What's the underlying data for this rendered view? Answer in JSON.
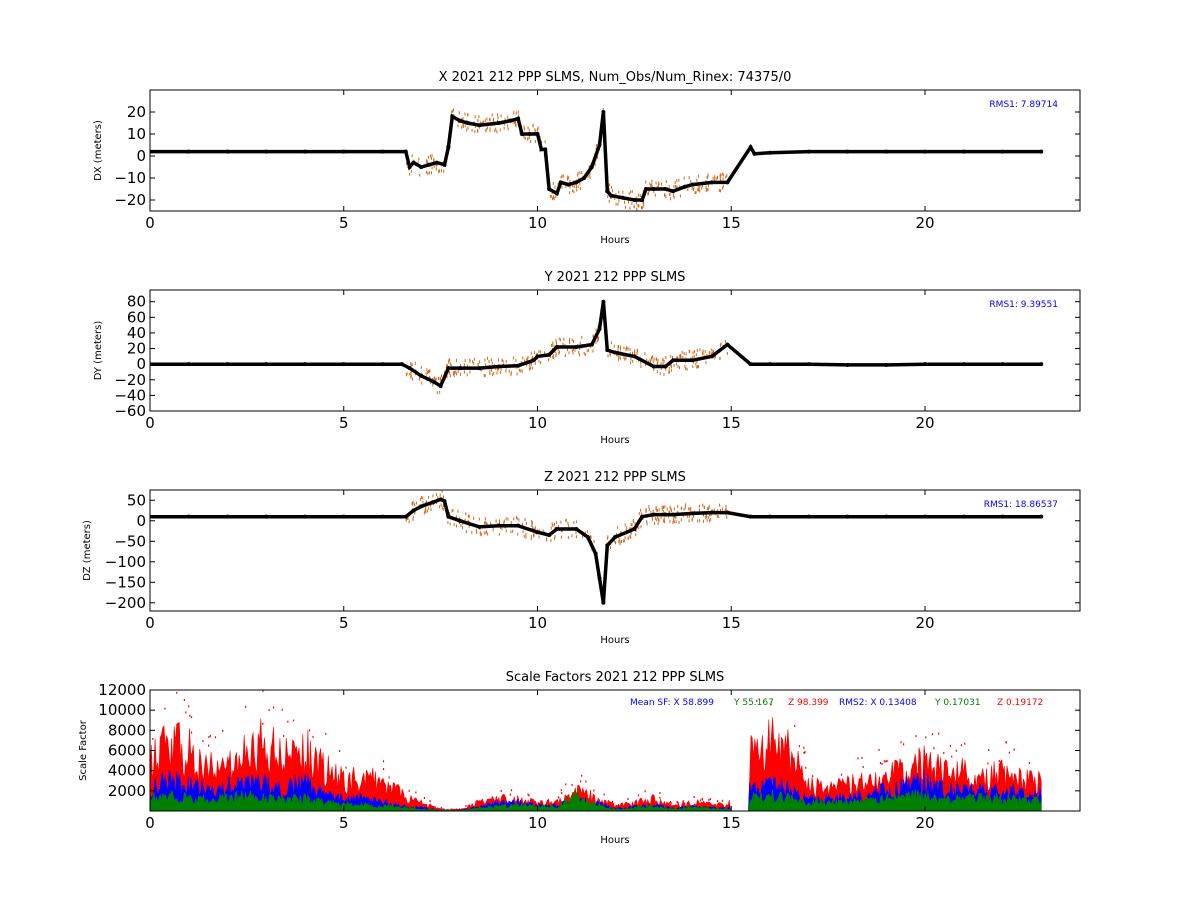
{
  "colors": {
    "background": "#ffffff",
    "axes": "#000000",
    "data": "#000000",
    "data_error": "#d2691e",
    "rms": "#0000ff",
    "sf_x": "#0000ff",
    "sf_y": "#008000",
    "sf_z": "#ff0000"
  },
  "chart_data": [
    {
      "type": "scatter",
      "title": "X 2021 212 PPP  SLMS, Num_Obs/Num_Rinex: 74375/0",
      "xlabel": "Hours",
      "ylabel": "DX (meters)",
      "xlim": [
        0,
        24
      ],
      "ylim": [
        -25,
        30
      ],
      "xticks": [
        0,
        5,
        10,
        15,
        20
      ],
      "yticks": [
        20,
        10,
        0,
        -10,
        -20
      ],
      "rms_label": "RMS1:  7.89714",
      "series": [
        {
          "x": [
            0,
            1,
            2,
            3,
            4,
            5,
            6,
            6.6,
            6.7,
            6.8,
            7.0,
            7.2,
            7.4,
            7.6,
            7.7,
            7.8,
            8.0,
            8.2,
            8.5,
            9.0,
            9.3,
            9.5,
            9.6,
            9.8,
            10.0,
            10.1,
            10.2,
            10.3,
            10.5,
            10.6,
            10.8,
            11.0,
            11.2,
            11.4,
            11.6,
            11.7,
            11.8,
            11.9,
            12.2,
            12.5,
            12.7,
            12.8,
            13.0,
            13.3,
            13.5,
            13.8,
            14.0,
            14.5,
            14.9,
            15.5,
            15.6,
            16,
            17,
            18,
            19,
            20,
            21,
            22,
            23
          ],
          "y": [
            2,
            2,
            2,
            2,
            2,
            2,
            2,
            2,
            -5,
            -3,
            -5,
            -4,
            -3,
            -4,
            4,
            18,
            16,
            15,
            14,
            15,
            16,
            17,
            10,
            10,
            10,
            3,
            3,
            -15,
            -17,
            -12,
            -13,
            -12,
            -10,
            -5,
            5,
            20,
            -16,
            -18,
            -19,
            -20,
            -20,
            -15,
            -15,
            -15,
            -16,
            -14,
            -13,
            -12,
            -12,
            4,
            1,
            1.5,
            2,
            2,
            2,
            2,
            2,
            2,
            2
          ]
        }
      ]
    },
    {
      "type": "scatter",
      "title": "Y 2021 212 PPP  SLMS",
      "xlabel": "Hours",
      "ylabel": "DY (meters)",
      "xlim": [
        0,
        24
      ],
      "ylim": [
        -60,
        95
      ],
      "xticks": [
        0,
        5,
        10,
        15,
        20
      ],
      "yticks": [
        80,
        60,
        40,
        20,
        0,
        -20,
        -40,
        -60
      ],
      "rms_label": "RMS1:  9.39551",
      "series": [
        {
          "x": [
            0,
            1,
            2,
            3,
            4,
            5,
            6,
            6.5,
            6.7,
            7.0,
            7.3,
            7.5,
            7.7,
            8.0,
            8.5,
            9.0,
            9.5,
            9.9,
            10.0,
            10.3,
            10.5,
            11.0,
            11.4,
            11.6,
            11.7,
            11.8,
            12.0,
            12.5,
            13.0,
            13.3,
            13.5,
            14.0,
            14.5,
            14.9,
            15.5,
            16,
            17,
            18,
            19,
            20,
            21,
            22,
            23
          ],
          "y": [
            0,
            0,
            0,
            0,
            0,
            0,
            0,
            0,
            -5,
            -15,
            -22,
            -28,
            -5,
            -5,
            -5,
            -3,
            -2,
            5,
            10,
            12,
            22,
            22,
            25,
            45,
            80,
            18,
            15,
            10,
            -3,
            -3,
            5,
            5,
            10,
            25,
            0,
            0,
            0,
            -1,
            -1,
            0,
            0,
            0,
            0
          ]
        }
      ]
    },
    {
      "type": "scatter",
      "title": "Z 2021 212 PPP  SLMS",
      "xlabel": "Hours",
      "ylabel": "DZ (meters)",
      "xlim": [
        0,
        24
      ],
      "ylim": [
        -220,
        75
      ],
      "xticks": [
        0,
        5,
        10,
        15,
        20
      ],
      "yticks": [
        50,
        0,
        -50,
        -100,
        -150,
        -200
      ],
      "rms_label": "RMS1: 18.86537",
      "series": [
        {
          "x": [
            0,
            1,
            2,
            3,
            4,
            5,
            6,
            6.6,
            6.8,
            7.0,
            7.3,
            7.5,
            7.6,
            7.7,
            8.0,
            8.5,
            9.0,
            9.5,
            10.0,
            10.3,
            10.5,
            11.0,
            11.3,
            11.5,
            11.6,
            11.7,
            11.8,
            12.0,
            12.5,
            12.7,
            13.0,
            13.3,
            13.5,
            14.0,
            14.5,
            14.9,
            15.5,
            16,
            17,
            18,
            19,
            20,
            21,
            22,
            23
          ],
          "y": [
            10,
            10,
            10,
            10,
            10,
            10,
            10,
            10,
            25,
            35,
            45,
            52,
            48,
            10,
            0,
            -15,
            -12,
            -12,
            -28,
            -35,
            -20,
            -20,
            -40,
            -80,
            -140,
            -200,
            -60,
            -40,
            -20,
            10,
            15,
            15,
            15,
            18,
            20,
            20,
            10,
            10,
            10,
            10,
            10,
            10,
            10,
            10,
            10
          ]
        }
      ]
    },
    {
      "type": "area",
      "title": "Scale Factors 2021 212 PPP  SLMS",
      "xlabel": "Hours",
      "ylabel": "Scale Factor",
      "xlim": [
        0,
        24
      ],
      "ylim": [
        0,
        12000
      ],
      "xticks": [
        0,
        5,
        10,
        15,
        20
      ],
      "yticks": [
        12000,
        10000,
        8000,
        6000,
        4000,
        2000
      ],
      "legend_text": {
        "mean_sf": "Mean SF: X  58.899",
        "y_mean": "Y  55.167",
        "z_mean": "Z  98.399",
        "rms2": "RMS2: X  0.13408",
        "y_rms": "Y  0.17031",
        "z_rms": "Z  0.19172"
      },
      "x": [
        0,
        0.5,
        1,
        1.5,
        2,
        2.5,
        3,
        3.5,
        4,
        4.5,
        5,
        5.5,
        6,
        6.5,
        7,
        7.5,
        8,
        8.5,
        9,
        9.5,
        10,
        10.5,
        11,
        11.5,
        12,
        12.5,
        13,
        13.5,
        14,
        14.5,
        14.9,
        15.5,
        16,
        16.5,
        17,
        17.5,
        18,
        18.5,
        19,
        19.5,
        20,
        20.5,
        21,
        21.5,
        22,
        22.5,
        23
      ],
      "series": [
        {
          "name": "Z",
          "values": [
            6000,
            8000,
            7000,
            5000,
            5000,
            7000,
            8000,
            6000,
            7000,
            5000,
            3500,
            4000,
            3500,
            2000,
            1000,
            200,
            200,
            1000,
            1500,
            1200,
            1000,
            1000,
            2500,
            1500,
            600,
            900,
            1500,
            500,
            1000,
            800,
            600,
            7000,
            9000,
            7000,
            3000,
            2500,
            3000,
            3500,
            4000,
            4500,
            6000,
            4500,
            4500,
            4000,
            4500,
            3500,
            3500
          ]
        },
        {
          "name": "X",
          "values": [
            2500,
            3500,
            3000,
            2500,
            3000,
            3500,
            3000,
            2500,
            3500,
            2000,
            1500,
            1500,
            1000,
            700,
            400,
            100,
            100,
            500,
            1000,
            1000,
            700,
            600,
            1500,
            1000,
            300,
            500,
            700,
            300,
            500,
            400,
            300,
            2500,
            3000,
            2500,
            1500,
            1500,
            1500,
            1800,
            2500,
            3000,
            3500,
            2500,
            2500,
            2500,
            2500,
            2000,
            2000
          ]
        },
        {
          "name": "Y",
          "values": [
            1500,
            1800,
            1500,
            1300,
            1500,
            1800,
            1500,
            1300,
            1500,
            1000,
            800,
            800,
            600,
            400,
            200,
            100,
            100,
            300,
            600,
            700,
            500,
            500,
            1800,
            700,
            200,
            400,
            500,
            200,
            400,
            300,
            200,
            1500,
            1800,
            1500,
            1000,
            1000,
            1100,
            1200,
            1500,
            1800,
            2000,
            1500,
            1500,
            1500,
            1500,
            1300,
            1300
          ]
        }
      ]
    }
  ]
}
